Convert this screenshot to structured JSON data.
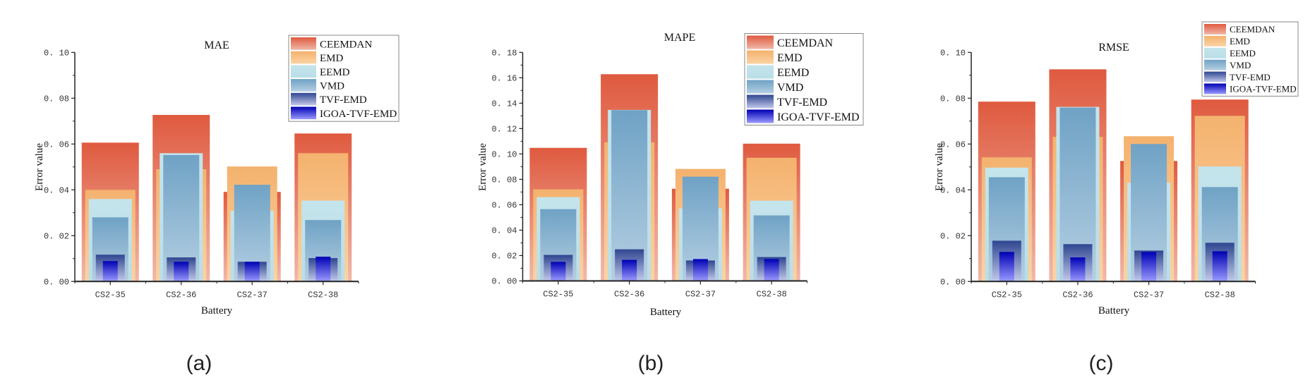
{
  "figure": {
    "panel_labels": [
      "(a)",
      "(b)",
      "(c)"
    ]
  },
  "series_styles": [
    {
      "name": "CEEMDAN",
      "top": "#DF5A3F",
      "bottom": "#F0B8A8"
    },
    {
      "name": "EMD",
      "top": "#F4B26E",
      "bottom": "#FBD3A4"
    },
    {
      "name": "EEMD",
      "top": "#C5E4EC",
      "bottom": "#B9DEE8"
    },
    {
      "name": "VMD",
      "top": "#6FA2C5",
      "bottom": "#B5CFE2"
    },
    {
      "name": "TVF-EMD",
      "top": "#2F4690",
      "bottom": "#C2C9EA"
    },
    {
      "name": "IGOA-TVF-EMD",
      "top": "#0000B4",
      "bottom": "#9A9AFF"
    }
  ],
  "chart_data": [
    {
      "type": "bar",
      "title": "MAE",
      "xlabel": "Battery",
      "ylabel": "Error value",
      "categories": [
        "CS2-35",
        "CS2-36",
        "CS2-37",
        "CS2-38"
      ],
      "ylim": [
        0,
        0.1
      ],
      "yticks": [
        "0.00",
        "0.02",
        "0.04",
        "0.06",
        "0.08",
        "0.10"
      ],
      "ytick_values": [
        0,
        0.02,
        0.04,
        0.06,
        0.08,
        0.1
      ],
      "minor_step": 0.01,
      "legend_position": "top-right",
      "grid": false,
      "series": [
        {
          "name": "CEEMDAN",
          "values": [
            0.0606,
            0.0727,
            0.0391,
            0.0646
          ]
        },
        {
          "name": "EMD",
          "values": [
            0.04,
            0.049,
            0.0502,
            0.056
          ]
        },
        {
          "name": "EEMD",
          "values": [
            0.036,
            0.056,
            0.0308,
            0.0353
          ]
        },
        {
          "name": "VMD",
          "values": [
            0.028,
            0.0552,
            0.0422,
            0.0268
          ]
        },
        {
          "name": "TVF-EMD",
          "values": [
            0.0117,
            0.0105,
            0.0086,
            0.0102
          ]
        },
        {
          "name": "IGOA-TVF-EMD",
          "values": [
            0.0089,
            0.0086,
            0.0086,
            0.0108
          ]
        }
      ]
    },
    {
      "type": "bar",
      "title": "MAPE",
      "xlabel": "Battery",
      "ylabel": "Error value",
      "categories": [
        "CS2-35",
        "CS2-36",
        "CS2-37",
        "CS2-38"
      ],
      "ylim": [
        0,
        0.18
      ],
      "yticks": [
        "0.00",
        "0.02",
        "0.04",
        "0.06",
        "0.08",
        "0.10",
        "0.12",
        "0.14",
        "0.16",
        "0.18"
      ],
      "ytick_values": [
        0,
        0.02,
        0.04,
        0.06,
        0.08,
        0.1,
        0.12,
        0.14,
        0.16,
        0.18
      ],
      "minor_step": 0.01,
      "legend_position": "top-right",
      "grid": false,
      "series": [
        {
          "name": "CEEMDAN",
          "values": [
            0.1048,
            0.1628,
            0.0726,
            0.1081
          ]
        },
        {
          "name": "EMD",
          "values": [
            0.0721,
            0.1092,
            0.0882,
            0.097
          ]
        },
        {
          "name": "EEMD",
          "values": [
            0.066,
            0.1347,
            0.0571,
            0.0632
          ]
        },
        {
          "name": "VMD",
          "values": [
            0.0565,
            0.1345,
            0.0821,
            0.0516
          ]
        },
        {
          "name": "TVF-EMD",
          "values": [
            0.0205,
            0.0249,
            0.0161,
            0.0188
          ]
        },
        {
          "name": "IGOA-TVF-EMD",
          "values": [
            0.015,
            0.0166,
            0.0172,
            0.0172
          ]
        }
      ]
    },
    {
      "type": "bar",
      "title": "RMSE",
      "xlabel": "Battery",
      "ylabel": "Error value",
      "categories": [
        "CS2-35",
        "CS2-36",
        "CS2-37",
        "CS2-38"
      ],
      "ylim": [
        0,
        0.1
      ],
      "yticks": [
        "0.00",
        "0.02",
        "0.04",
        "0.06",
        "0.08",
        "0.10"
      ],
      "ytick_values": [
        0,
        0.02,
        0.04,
        0.06,
        0.08,
        0.1
      ],
      "minor_step": 0.01,
      "legend_position": "top-right",
      "grid": false,
      "series": [
        {
          "name": "CEEMDAN",
          "values": [
            0.0785,
            0.0926,
            0.0526,
            0.0794
          ]
        },
        {
          "name": "EMD",
          "values": [
            0.0542,
            0.0631,
            0.0634,
            0.0723
          ]
        },
        {
          "name": "EEMD",
          "values": [
            0.0497,
            0.0762,
            0.0431,
            0.0502
          ]
        },
        {
          "name": "VMD",
          "values": [
            0.0455,
            0.0759,
            0.06,
            0.0412
          ]
        },
        {
          "name": "TVF-EMD",
          "values": [
            0.0178,
            0.0163,
            0.0135,
            0.0169
          ]
        },
        {
          "name": "IGOA-TVF-EMD",
          "values": [
            0.0129,
            0.0105,
            0.0129,
            0.0132
          ]
        }
      ]
    }
  ]
}
